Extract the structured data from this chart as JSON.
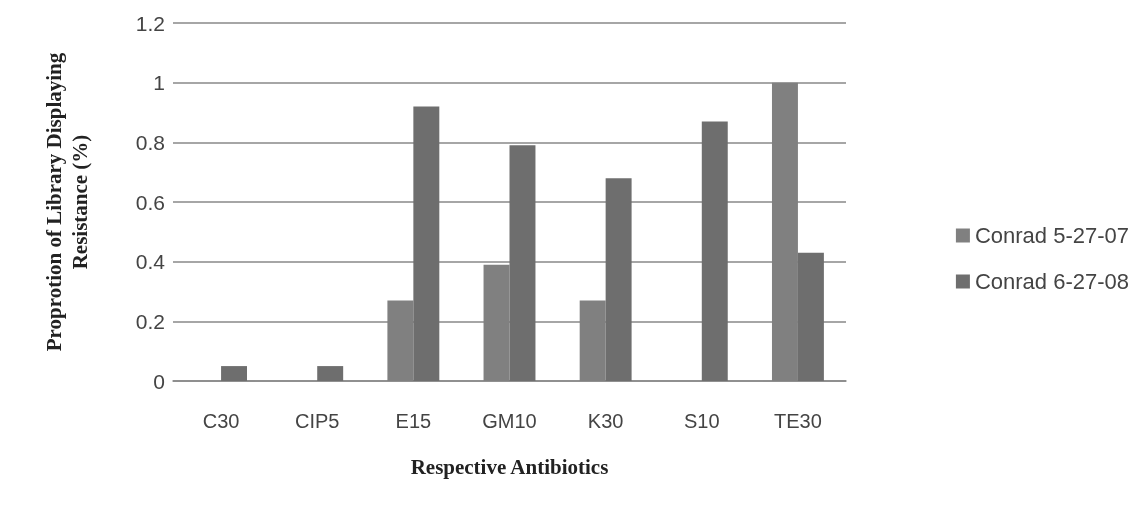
{
  "chart_data": {
    "type": "bar",
    "xlabel": "Respective Antibiotics",
    "ylabel": "Proprotion of Library Displaying\nResistance (%)",
    "categories": [
      "C30",
      "CIP5",
      "E15",
      "GM10",
      "K30",
      "S10",
      "TE30"
    ],
    "series": [
      {
        "name": "Conrad 5-27-07",
        "color": "#808080",
        "values": [
          0,
          0,
          0.27,
          0.39,
          0.27,
          0,
          1.0
        ]
      },
      {
        "name": "Conrad 6-27-08",
        "color": "#6e6e6e",
        "values": [
          0.05,
          0.05,
          0.92,
          0.79,
          0.68,
          0.87,
          0.43
        ]
      }
    ],
    "ylim": [
      0,
      1.2
    ],
    "yticks": [
      0,
      0.2,
      0.4,
      0.6,
      0.8,
      1,
      1.2
    ],
    "grid": "y",
    "legend": "right"
  }
}
